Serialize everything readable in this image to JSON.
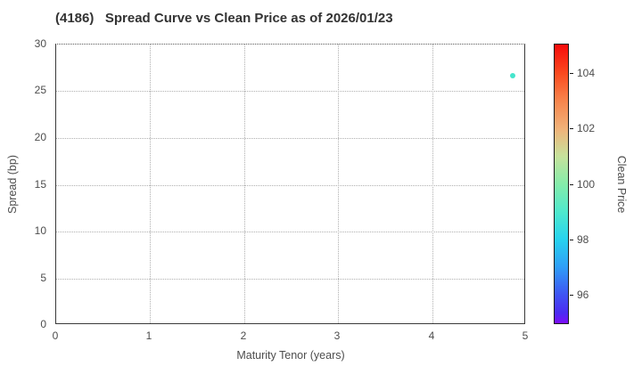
{
  "chart_data": {
    "type": "scatter",
    "title": "(4186)   Spread Curve vs Clean Price as of 2026/01/23",
    "xlabel": "Maturity Tenor (years)",
    "ylabel": "Spread (bp)",
    "xlim": [
      0,
      5
    ],
    "ylim": [
      0,
      30
    ],
    "xticks": [
      0,
      1,
      2,
      3,
      4,
      5
    ],
    "yticks": [
      0,
      5,
      10,
      15,
      20,
      25,
      30
    ],
    "grid": true,
    "grid_style": "dotted",
    "legend_position": "right-colorbar",
    "points": [
      {
        "x": 4.87,
        "y": 26.6,
        "clean_price": 99,
        "color": "#45e5cc"
      }
    ],
    "colorbar": {
      "label": "Clean Price",
      "min": 94.95,
      "max": 105.05,
      "ticks": [
        96,
        98,
        100,
        102,
        104
      ],
      "colormap": "rainbow",
      "gradient_stops": [
        {
          "v": 105.05,
          "c": "#f60b0b"
        },
        {
          "v": 104.0,
          "c": "#fa4a1f"
        },
        {
          "v": 103.0,
          "c": "#f7854d"
        },
        {
          "v": 102.0,
          "c": "#f1b279"
        },
        {
          "v": 101.0,
          "c": "#c6e29c"
        },
        {
          "v": 100.0,
          "c": "#85ecaa"
        },
        {
          "v": 99.0,
          "c": "#50e9cc"
        },
        {
          "v": 98.0,
          "c": "#27d3ee"
        },
        {
          "v": 97.0,
          "c": "#2f9ff7"
        },
        {
          "v": 96.0,
          "c": "#3f55f3"
        },
        {
          "v": 95.3,
          "c": "#4c2af2"
        },
        {
          "v": 94.95,
          "c": "#7d0cf8"
        }
      ]
    },
    "colors": {
      "title": "#333333",
      "tick_label": "#4d4d4d",
      "axis_label": "#4d4d4d",
      "gridline": "#b0b0b0",
      "spine": "#3a3a3a",
      "background": "#ffffff"
    }
  }
}
